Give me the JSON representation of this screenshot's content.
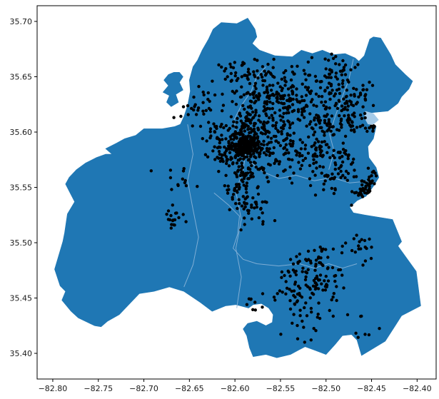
{
  "figure": {
    "background": "#ffffff",
    "title": ""
  },
  "axes": {
    "spine_color": "#000000",
    "tick_color": "#000000",
    "tick_label_color": "#1a1a1a",
    "x_tick_labels": [
      "−82.80",
      "−82.75",
      "−82.70",
      "−82.65",
      "−82.60",
      "−82.55",
      "−82.50",
      "−82.45",
      "−82.40"
    ],
    "y_tick_labels": [
      "35.70",
      "35.65",
      "35.60",
      "35.55",
      "35.50",
      "35.45",
      "35.40"
    ]
  },
  "chart_data": {
    "type": "scatter",
    "title": "",
    "xlabel": "",
    "ylabel": "",
    "grid": false,
    "legend": null,
    "xlim": [
      -82.8172,
      -82.3791
    ],
    "ylim": [
      35.3768,
      35.7142
    ],
    "x_ticks": [
      -82.8,
      -82.75,
      -82.7,
      -82.65,
      -82.6,
      -82.55,
      -82.5,
      -82.45,
      -82.4
    ],
    "y_ticks": [
      35.7,
      35.65,
      35.6,
      35.55,
      35.5,
      35.45,
      35.4
    ],
    "map": {
      "fill_color": "#1f77b4",
      "boundary": [
        [
          -82.646,
          35.659
        ],
        [
          -82.641,
          35.665
        ],
        [
          -82.636,
          35.674
        ],
        [
          -82.629,
          35.684
        ],
        [
          -82.624,
          35.693
        ],
        [
          -82.615,
          35.699
        ],
        [
          -82.598,
          35.698
        ],
        [
          -82.586,
          35.703
        ],
        [
          -82.578,
          35.693
        ],
        [
          -82.576,
          35.686
        ],
        [
          -82.581,
          35.68
        ],
        [
          -82.573,
          35.674
        ],
        [
          -82.556,
          35.669
        ],
        [
          -82.537,
          35.668
        ],
        [
          -82.527,
          35.674
        ],
        [
          -82.515,
          35.671
        ],
        [
          -82.504,
          35.674
        ],
        [
          -82.492,
          35.67
        ],
        [
          -82.479,
          35.671
        ],
        [
          -82.468,
          35.667
        ],
        [
          -82.464,
          35.664
        ],
        [
          -82.458,
          35.669
        ],
        [
          -82.452,
          35.684
        ],
        [
          -82.448,
          35.686
        ],
        [
          -82.44,
          35.685
        ],
        [
          -82.429,
          35.67
        ],
        [
          -82.424,
          35.661
        ],
        [
          -82.413,
          35.652
        ],
        [
          -82.405,
          35.646
        ],
        [
          -82.409,
          35.639
        ],
        [
          -82.417,
          35.632
        ],
        [
          -82.421,
          35.626
        ],
        [
          -82.432,
          35.619
        ],
        [
          -82.457,
          35.617
        ],
        [
          -82.453,
          35.607
        ],
        [
          -82.445,
          35.605
        ],
        [
          -82.448,
          35.594
        ],
        [
          -82.454,
          35.587
        ],
        [
          -82.453,
          35.577
        ],
        [
          -82.445,
          35.568
        ],
        [
          -82.442,
          35.559
        ],
        [
          -82.448,
          35.551
        ],
        [
          -82.456,
          35.542
        ],
        [
          -82.466,
          35.538
        ],
        [
          -82.474,
          35.532
        ],
        [
          -82.47,
          35.527
        ],
        [
          -82.457,
          35.525
        ],
        [
          -82.427,
          35.521
        ],
        [
          -82.417,
          35.501
        ],
        [
          -82.421,
          35.497
        ],
        [
          -82.401,
          35.474
        ],
        [
          -82.396,
          35.443
        ],
        [
          -82.417,
          35.434
        ],
        [
          -82.424,
          35.425
        ],
        [
          -82.435,
          35.411
        ],
        [
          -82.445,
          35.406
        ],
        [
          -82.461,
          35.398
        ],
        [
          -82.466,
          35.412
        ],
        [
          -82.472,
          35.417
        ],
        [
          -82.482,
          35.416
        ],
        [
          -82.49,
          35.408
        ],
        [
          -82.5,
          35.399
        ],
        [
          -82.513,
          35.403
        ],
        [
          -82.523,
          35.406
        ],
        [
          -82.53,
          35.403
        ],
        [
          -82.539,
          35.399
        ],
        [
          -82.554,
          35.396
        ],
        [
          -82.566,
          35.399
        ],
        [
          -82.58,
          35.397
        ],
        [
          -82.584,
          35.405
        ],
        [
          -82.587,
          35.416
        ],
        [
          -82.591,
          35.422
        ],
        [
          -82.586,
          35.427
        ],
        [
          -82.576,
          35.429
        ],
        [
          -82.566,
          35.425
        ],
        [
          -82.559,
          35.428
        ],
        [
          -82.558,
          35.435
        ],
        [
          -82.563,
          35.441
        ],
        [
          -82.571,
          35.445
        ],
        [
          -82.58,
          35.444
        ],
        [
          -82.585,
          35.441
        ],
        [
          -82.599,
          35.444
        ],
        [
          -82.61,
          35.443
        ],
        [
          -82.625,
          35.438
        ],
        [
          -82.638,
          35.446
        ],
        [
          -82.656,
          35.456
        ],
        [
          -82.672,
          35.46
        ],
        [
          -82.689,
          35.456
        ],
        [
          -82.705,
          35.454
        ],
        [
          -82.727,
          35.435
        ],
        [
          -82.74,
          35.429
        ],
        [
          -82.747,
          35.424
        ],
        [
          -82.754,
          35.425
        ],
        [
          -82.772,
          35.432
        ],
        [
          -82.78,
          35.438
        ],
        [
          -82.79,
          35.448
        ],
        [
          -82.786,
          35.456
        ],
        [
          -82.792,
          35.461
        ],
        [
          -82.798,
          35.476
        ],
        [
          -82.789,
          35.501
        ],
        [
          -82.787,
          35.509
        ],
        [
          -82.784,
          35.526
        ],
        [
          -82.776,
          35.537
        ],
        [
          -82.781,
          35.545
        ],
        [
          -82.786,
          35.553
        ],
        [
          -82.782,
          35.559
        ],
        [
          -82.774,
          35.566
        ],
        [
          -82.764,
          35.572
        ],
        [
          -82.752,
          35.577
        ],
        [
          -82.742,
          35.58
        ],
        [
          -82.735,
          35.58
        ],
        [
          -82.742,
          35.585
        ],
        [
          -82.73,
          35.59
        ],
        [
          -82.721,
          35.594
        ],
        [
          -82.709,
          35.597
        ],
        [
          -82.7,
          35.603
        ],
        [
          -82.68,
          35.603
        ],
        [
          -82.666,
          35.605
        ],
        [
          -82.66,
          35.607
        ],
        [
          -82.656,
          35.614
        ],
        [
          -82.652,
          35.624
        ],
        [
          -82.649,
          35.637
        ],
        [
          -82.65,
          35.647
        ]
      ],
      "islands": [
        [
          [
            -82.667,
            35.654
          ],
          [
            -82.661,
            35.654
          ],
          [
            -82.657,
            35.65
          ],
          [
            -82.661,
            35.645
          ],
          [
            -82.657,
            35.638
          ],
          [
            -82.665,
            35.634
          ],
          [
            -82.662,
            35.627
          ],
          [
            -82.67,
            35.623
          ],
          [
            -82.675,
            35.627
          ],
          [
            -82.672,
            35.633
          ],
          [
            -82.679,
            35.636
          ],
          [
            -82.673,
            35.642
          ],
          [
            -82.678,
            35.647
          ],
          [
            -82.673,
            35.652
          ]
        ]
      ],
      "light_patches": [
        {
          "color": "#a5cbe9",
          "coords": [
            [
              -82.457,
              35.619
            ],
            [
              -82.448,
              35.617
            ],
            [
              -82.442,
              35.611
            ],
            [
              -82.448,
              35.607
            ],
            [
              -82.454,
              35.607
            ],
            [
              -82.458,
              35.613
            ]
          ]
        }
      ],
      "inner_lines": {
        "color": "#8ab4d8",
        "width": 1,
        "paths": [
          [
            [
              -82.598,
              35.441
            ],
            [
              -82.593,
              35.469
            ],
            [
              -82.599,
              35.495
            ],
            [
              -82.593,
              35.521
            ],
            [
              -82.599,
              35.546
            ],
            [
              -82.591,
              35.566
            ],
            [
              -82.588,
              35.582
            ],
            [
              -82.598,
              35.595
            ],
            [
              -82.601,
              35.611
            ],
            [
              -82.593,
              35.624
            ],
            [
              -82.582,
              35.637
            ],
            [
              -82.576,
              35.65
            ],
            [
              -82.566,
              35.659
            ]
          ],
          [
            [
              -82.45,
              35.556
            ],
            [
              -82.474,
              35.554
            ],
            [
              -82.493,
              35.559
            ],
            [
              -82.513,
              35.556
            ],
            [
              -82.533,
              35.561
            ],
            [
              -82.552,
              35.558
            ],
            [
              -82.569,
              35.564
            ],
            [
              -82.582,
              35.572
            ],
            [
              -82.588,
              35.582
            ]
          ],
          [
            [
              -82.623,
              35.545
            ],
            [
              -82.607,
              35.534
            ],
            [
              -82.595,
              35.524
            ],
            [
              -82.597,
              35.508
            ],
            [
              -82.602,
              35.495
            ],
            [
              -82.591,
              35.485
            ],
            [
              -82.576,
              35.481
            ],
            [
              -82.552,
              35.479
            ],
            [
              -82.529,
              35.481
            ],
            [
              -82.513,
              35.477
            ],
            [
              -82.497,
              35.481
            ],
            [
              -82.482,
              35.477
            ],
            [
              -82.466,
              35.481
            ]
          ],
          [
            [
              -82.47,
              35.666
            ],
            [
              -82.475,
              35.647
            ],
            [
              -82.483,
              35.63
            ],
            [
              -82.49,
              35.614
            ],
            [
              -82.496,
              35.598
            ],
            [
              -82.491,
              35.582
            ],
            [
              -82.497,
              35.566
            ]
          ],
          [
            [
              -82.652,
              35.607
            ],
            [
              -82.646,
              35.58
            ],
            [
              -82.652,
              35.556
            ],
            [
              -82.646,
              35.53
            ],
            [
              -82.64,
              35.505
            ],
            [
              -82.646,
              35.48
            ],
            [
              -82.656,
              35.46
            ]
          ]
        ]
      }
    },
    "scatter": {
      "color": "#000000",
      "marker_radius_px": 2.2,
      "seed": 11,
      "clusters": [
        {
          "lon": -82.588,
          "lat": 35.587,
          "sd_lon": 0.0063,
          "sd_lat": 0.0052,
          "n": 150
        },
        {
          "lon": -82.586,
          "lat": 35.588,
          "sd_lon": 0.0157,
          "sd_lat": 0.0129,
          "n": 130
        },
        {
          "lon": -82.609,
          "lat": 35.582,
          "sd_lon": 0.0094,
          "sd_lat": 0.0077,
          "n": 60
        },
        {
          "lon": -82.576,
          "lat": 35.621,
          "sd_lon": 0.0196,
          "sd_lat": 0.0161,
          "n": 90
        },
        {
          "lon": -82.572,
          "lat": 35.643,
          "sd_lon": 0.0141,
          "sd_lat": 0.0116,
          "n": 60
        },
        {
          "lon": -82.541,
          "lat": 35.63,
          "sd_lon": 0.0141,
          "sd_lat": 0.0116,
          "n": 70
        },
        {
          "lon": -82.505,
          "lat": 35.64,
          "sd_lon": 0.0157,
          "sd_lat": 0.0129,
          "n": 60
        },
        {
          "lon": -82.482,
          "lat": 35.624,
          "sd_lon": 0.0118,
          "sd_lat": 0.0097,
          "n": 40
        },
        {
          "lon": -82.49,
          "lat": 35.653,
          "sd_lon": 0.0094,
          "sd_lat": 0.0077,
          "n": 30
        },
        {
          "lon": -82.501,
          "lat": 35.608,
          "sd_lon": 0.0118,
          "sd_lat": 0.0097,
          "n": 45
        },
        {
          "lon": -82.47,
          "lat": 35.611,
          "sd_lon": 0.0094,
          "sd_lat": 0.0077,
          "n": 30
        },
        {
          "lon": -82.49,
          "lat": 35.563,
          "sd_lon": 0.0141,
          "sd_lat": 0.0116,
          "n": 55
        },
        {
          "lon": -82.45,
          "lat": 35.553,
          "sd_lon": 0.0094,
          "sd_lat": 0.0077,
          "n": 30
        },
        {
          "lon": -82.435,
          "lat": 35.543,
          "sd_lon": 0.0078,
          "sd_lat": 0.0065,
          "n": 20
        },
        {
          "lon": -82.595,
          "lat": 35.543,
          "sd_lon": 0.0094,
          "sd_lat": 0.0077,
          "n": 40
        },
        {
          "lon": -82.58,
          "lat": 35.527,
          "sd_lon": 0.0118,
          "sd_lat": 0.0097,
          "n": 30
        },
        {
          "lon": -82.666,
          "lat": 35.521,
          "sd_lon": 0.0063,
          "sd_lat": 0.0052,
          "n": 18
        },
        {
          "lon": -82.662,
          "lat": 35.556,
          "sd_lon": 0.0094,
          "sd_lat": 0.0077,
          "n": 12
        },
        {
          "lon": -82.529,
          "lat": 35.463,
          "sd_lon": 0.0141,
          "sd_lat": 0.0116,
          "n": 55
        },
        {
          "lon": -82.501,
          "lat": 35.466,
          "sd_lon": 0.0118,
          "sd_lat": 0.0097,
          "n": 40
        },
        {
          "lon": -82.513,
          "lat": 35.488,
          "sd_lon": 0.0094,
          "sd_lat": 0.0077,
          "n": 25
        },
        {
          "lon": -82.466,
          "lat": 35.495,
          "sd_lon": 0.0094,
          "sd_lat": 0.0077,
          "n": 20
        },
        {
          "lon": -82.521,
          "lat": 35.424,
          "sd_lon": 0.0141,
          "sd_lat": 0.0116,
          "n": 20
        },
        {
          "lon": -82.576,
          "lat": 35.447,
          "sd_lon": 0.0078,
          "sd_lat": 0.0065,
          "n": 10
        },
        {
          "lon": -82.537,
          "lat": 35.447,
          "sd_lon": 0.0078,
          "sd_lat": 0.0065,
          "n": 8
        },
        {
          "lon": -82.635,
          "lat": 35.624,
          "sd_lon": 0.0118,
          "sd_lat": 0.0097,
          "n": 15
        },
        {
          "lon": -82.607,
          "lat": 35.65,
          "sd_lon": 0.0094,
          "sd_lat": 0.0077,
          "n": 15
        },
        {
          "lon": -82.548,
          "lat": 35.601,
          "sd_lon": 0.0141,
          "sd_lat": 0.0116,
          "n": 60
        },
        {
          "lon": -82.529,
          "lat": 35.579,
          "sd_lon": 0.0118,
          "sd_lat": 0.0097,
          "n": 40
        },
        {
          "lon": -82.509,
          "lat": 35.585,
          "sd_lon": 0.0078,
          "sd_lat": 0.0065,
          "n": 25
        },
        {
          "lon": -82.584,
          "lat": 35.608,
          "sd_lon": 0.0078,
          "sd_lat": 0.0065,
          "n": 40
        },
        {
          "lon": -82.564,
          "lat": 35.566,
          "sd_lon": 0.0094,
          "sd_lat": 0.0077,
          "n": 30
        },
        {
          "lon": -82.623,
          "lat": 35.598,
          "sd_lon": 0.0078,
          "sd_lat": 0.0065,
          "n": 20
        },
        {
          "lon": -82.646,
          "lat": 35.617,
          "sd_lon": 0.0063,
          "sd_lat": 0.0052,
          "n": 10
        },
        {
          "lon": -82.458,
          "lat": 35.54,
          "sd_lon": 0.0063,
          "sd_lat": 0.0052,
          "n": 12
        },
        {
          "lon": -82.462,
          "lat": 35.421,
          "sd_lon": 0.0094,
          "sd_lat": 0.0077,
          "n": 8
        },
        {
          "lon": -82.588,
          "lat": 35.563,
          "sd_lon": 0.0063,
          "sd_lat": 0.0052,
          "n": 25
        },
        {
          "lon": -82.591,
          "lat": 35.659,
          "sd_lon": 0.0078,
          "sd_lat": 0.0065,
          "n": 10
        },
        {
          "lon": -82.458,
          "lat": 35.637,
          "sd_lon": 0.0078,
          "sd_lat": 0.0065,
          "n": 15
        },
        {
          "lon": -82.442,
          "lat": 35.605,
          "sd_lon": 0.0047,
          "sd_lat": 0.0039,
          "n": 8
        },
        {
          "lon": -82.482,
          "lat": 35.582,
          "sd_lon": 0.0063,
          "sd_lat": 0.0052,
          "n": 15
        }
      ],
      "extra_points": [
        [
          -82.692,
          35.565
        ]
      ]
    }
  }
}
